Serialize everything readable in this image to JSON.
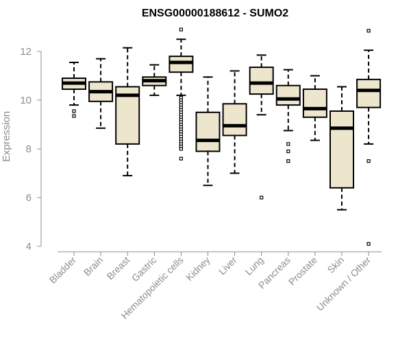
{
  "chart_data": {
    "type": "box",
    "title": "ENSG00000188612 - SUMO2",
    "xlabel": "",
    "ylabel": "Expression",
    "ylim": [
      4,
      13
    ],
    "yticks": [
      4,
      6,
      8,
      10,
      12
    ],
    "grid": false,
    "legend": "none",
    "box_fill": "#ede6cd",
    "categories": [
      "Bladder",
      "Brain",
      "Breast",
      "Gastric",
      "Hematopoietic cells",
      "Kidney",
      "Liver",
      "Lung",
      "Pancreas",
      "Prostate",
      "Skin",
      "Unknown / Other"
    ],
    "boxes": [
      {
        "whisker_low": 9.8,
        "q1": 10.45,
        "median": 10.7,
        "q3": 10.9,
        "whisker_high": 11.55,
        "outliers": [
          9.55,
          9.35
        ]
      },
      {
        "whisker_low": 8.85,
        "q1": 9.95,
        "median": 10.35,
        "q3": 10.75,
        "whisker_high": 11.7,
        "outliers": []
      },
      {
        "whisker_low": 6.9,
        "q1": 8.2,
        "median": 10.2,
        "q3": 10.55,
        "whisker_high": 12.15,
        "outliers": []
      },
      {
        "whisker_low": 10.2,
        "q1": 10.6,
        "median": 10.8,
        "q3": 10.95,
        "whisker_high": 11.45,
        "outliers": []
      },
      {
        "whisker_low": 10.2,
        "q1": 11.15,
        "median": 11.55,
        "q3": 11.8,
        "whisker_high": 12.5,
        "outliers": [
          12.9,
          10.1,
          10.0,
          9.9,
          9.8,
          9.7,
          9.6,
          9.5,
          9.4,
          9.3,
          9.2,
          9.1,
          9.0,
          8.9,
          8.8,
          8.7,
          8.6,
          8.5,
          8.4,
          8.3,
          8.2,
          8.1,
          8.0,
          7.6
        ]
      },
      {
        "whisker_low": 6.5,
        "q1": 7.9,
        "median": 8.35,
        "q3": 9.5,
        "whisker_high": 10.95,
        "outliers": []
      },
      {
        "whisker_low": 7.0,
        "q1": 8.55,
        "median": 8.95,
        "q3": 9.85,
        "whisker_high": 11.2,
        "outliers": []
      },
      {
        "whisker_low": 9.4,
        "q1": 10.25,
        "median": 10.7,
        "q3": 11.35,
        "whisker_high": 11.85,
        "outliers": [
          6.0
        ]
      },
      {
        "whisker_low": 8.75,
        "q1": 9.8,
        "median": 10.05,
        "q3": 10.6,
        "whisker_high": 11.25,
        "outliers": [
          8.2,
          7.9,
          7.5
        ]
      },
      {
        "whisker_low": 8.35,
        "q1": 9.3,
        "median": 9.65,
        "q3": 10.45,
        "whisker_high": 11.0,
        "outliers": []
      },
      {
        "whisker_low": 5.5,
        "q1": 6.4,
        "median": 8.85,
        "q3": 9.55,
        "whisker_high": 10.55,
        "outliers": []
      },
      {
        "whisker_low": 8.2,
        "q1": 9.7,
        "median": 10.4,
        "q3": 10.85,
        "whisker_high": 12.05,
        "outliers": [
          12.85,
          7.5,
          4.1
        ]
      }
    ]
  }
}
